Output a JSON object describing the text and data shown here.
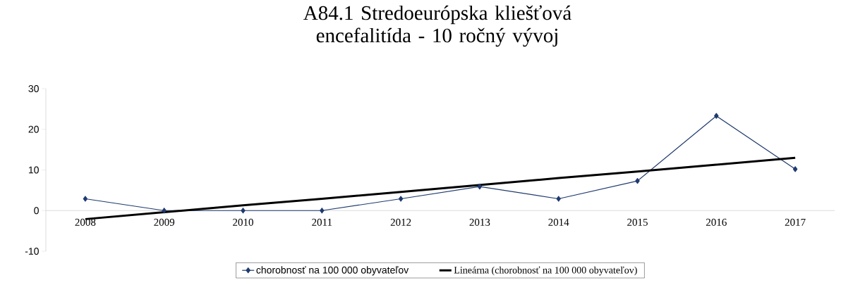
{
  "chart_data": {
    "type": "line",
    "title": "A84.1 Stredoeurópska kliešťová encefalitída - 10 ročný vývoj",
    "categories": [
      "2008",
      "2009",
      "2010",
      "2011",
      "2012",
      "2013",
      "2014",
      "2015",
      "2016",
      "2017"
    ],
    "series": [
      {
        "name": "chorobnosť na 100 000 obyvateľov",
        "color": "#1f3a6e",
        "marker": "diamond",
        "values": [
          2.9,
          0,
          0,
          0,
          2.9,
          5.9,
          2.9,
          7.3,
          23.3,
          10.2
        ]
      },
      {
        "name": "Lineárna (chorobnosť na 100 000 obyvateľov)",
        "color": "#000000",
        "marker": "none",
        "values": [
          -2.1,
          -0.4,
          1.3,
          2.9,
          4.6,
          6.3,
          8.0,
          9.6,
          11.3,
          13.0
        ]
      }
    ],
    "ylim": [
      -10,
      30
    ],
    "yticks": [
      -10,
      0,
      10,
      20,
      30
    ],
    "grid": false,
    "legend": "bottom"
  }
}
